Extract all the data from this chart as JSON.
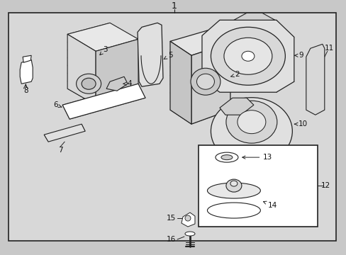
{
  "bg_color": "#c8c8c8",
  "inner_bg": "#d8d8d8",
  "border_color": "#222222",
  "lc": "#222222",
  "tc": "#111111",
  "fig_w": 4.89,
  "fig_h": 3.6,
  "dpi": 100
}
